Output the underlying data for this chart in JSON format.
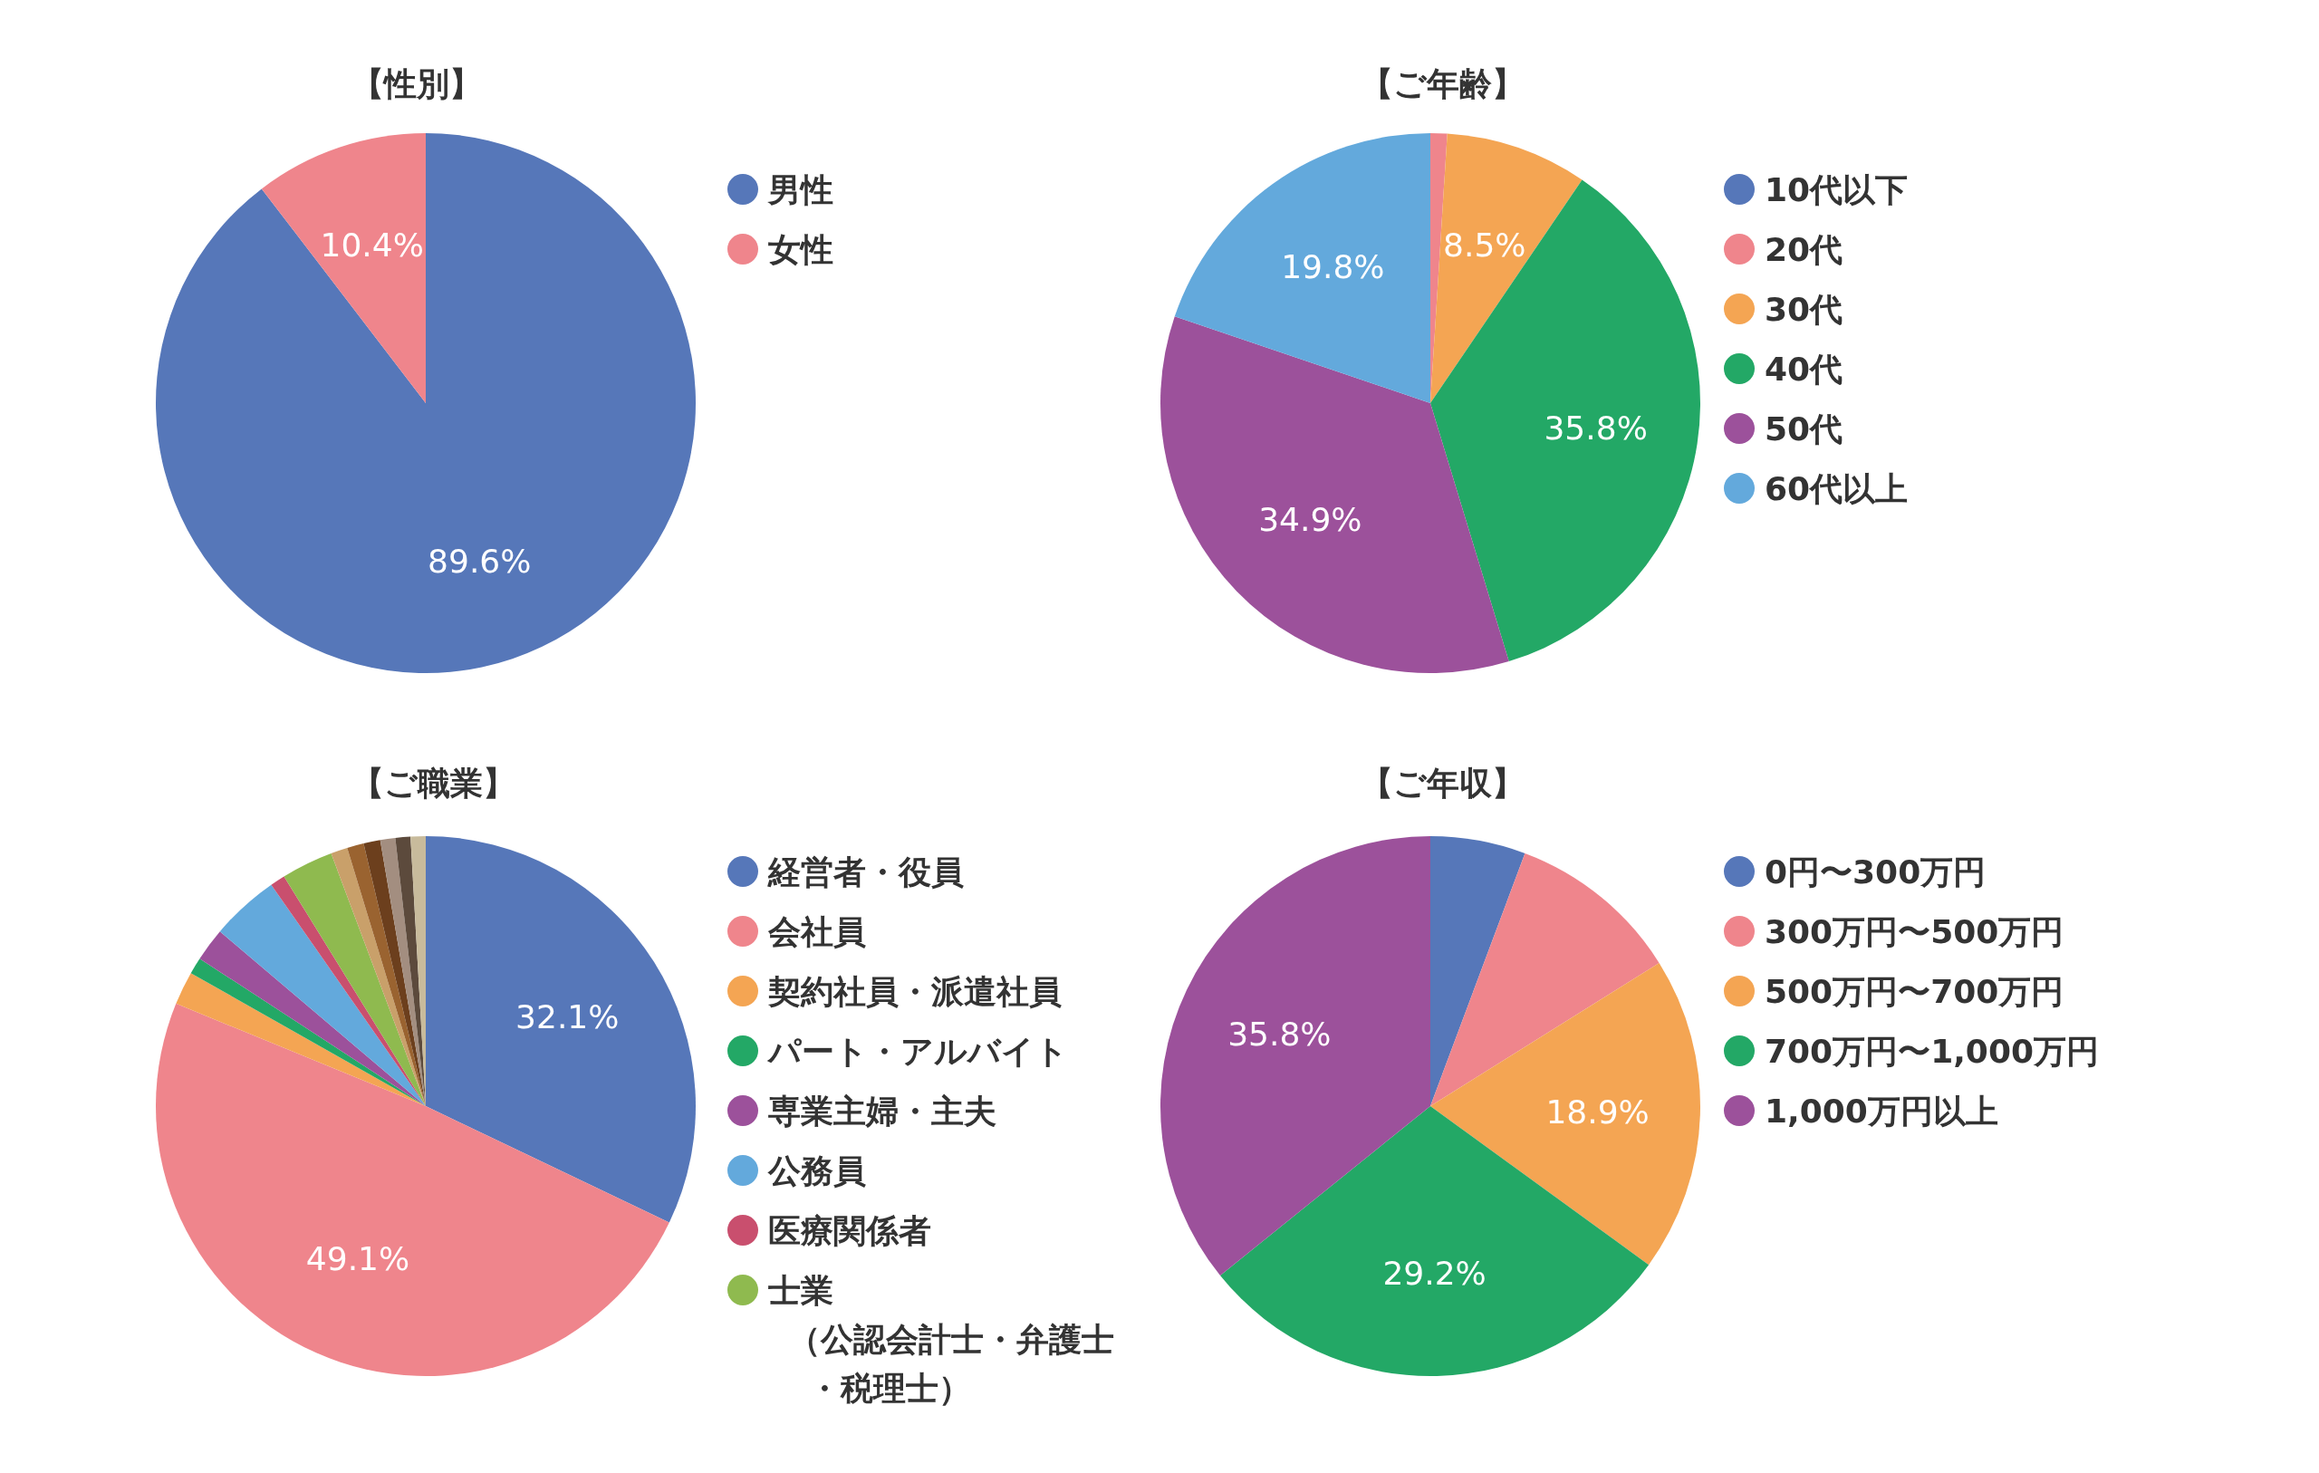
{
  "chart_data": [
    {
      "type": "pie",
      "title": "【性別】",
      "categories": [
        "男性",
        "女性"
      ],
      "values": [
        89.6,
        10.4
      ],
      "colors": [
        "#5677b9",
        "#ef858c"
      ],
      "value_labels": [
        "89.6%",
        "10.4%"
      ],
      "legend": "right"
    },
    {
      "type": "pie",
      "title": "【ご年齢】",
      "categories": [
        "10代以下",
        "20代",
        "30代",
        "40代",
        "50代",
        "60代以上"
      ],
      "values": [
        0,
        1.0,
        8.5,
        35.8,
        34.9,
        19.8
      ],
      "colors": [
        "#5677b9",
        "#ef858c",
        "#f4a553",
        "#23a866",
        "#9c519b",
        "#63a9dc"
      ],
      "value_labels": [
        null,
        null,
        "8.5%",
        "35.8%",
        "34.9%",
        "19.8%"
      ],
      "legend": "right"
    },
    {
      "type": "pie",
      "title": "【ご職業】",
      "categories": [
        "経営者・役員",
        "会社員",
        "契約社員・派遣社員",
        "パート・アルバイト",
        "専業主婦・主夫",
        "公務員",
        "医療関係者",
        "士業（公認会計士・弁護士・税理士）",
        null,
        null,
        null,
        null,
        null,
        null
      ],
      "values": [
        32.1,
        49.1,
        2.0,
        1.0,
        2.0,
        4.1,
        0.9,
        3.1,
        1.0,
        1.0,
        1.0,
        0.9,
        0.9,
        0.9
      ],
      "colors": [
        "#5677b9",
        "#ef858c",
        "#f4a553",
        "#23a866",
        "#9c519b",
        "#63a9dc",
        "#c94f6e",
        "#8fba4f",
        "#c9a06a",
        "#9a6330",
        "#6c3f1d",
        "#a38e80",
        "#5c4a3c",
        "#c8bb9c"
      ],
      "value_labels": [
        "32.1%",
        "49.1%",
        null,
        null,
        null,
        null,
        null,
        null,
        null,
        null,
        null,
        null,
        null,
        null
      ],
      "legend": "right"
    },
    {
      "type": "pie",
      "title": "【ご年収】",
      "categories": [
        "0円〜300万円",
        "300万円〜500万円",
        "500万円〜700万円",
        "700万円〜1,000万円",
        "1,000万円以上"
      ],
      "values": [
        5.7,
        10.4,
        18.9,
        29.2,
        35.8
      ],
      "colors": [
        "#5677b9",
        "#ef858c",
        "#f4a553",
        "#23a866",
        "#9c519b"
      ],
      "value_labels": [
        null,
        null,
        "18.9%",
        "29.2%",
        "35.8%"
      ],
      "legend": "right"
    }
  ]
}
